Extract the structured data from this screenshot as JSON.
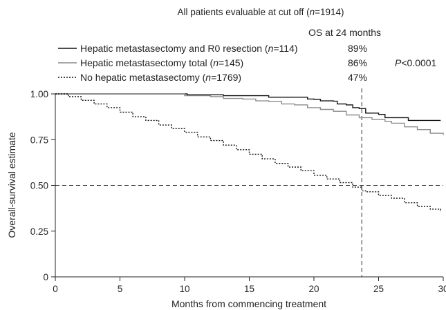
{
  "chart_data": {
    "type": "line",
    "title_parts": [
      "All patients evaluable at cut off (",
      "n",
      "=1914)"
    ],
    "os_header": "OS at 24 months",
    "xlabel": "Months from commencing treatment",
    "ylabel": "Overall-survival estimate",
    "xlim": [
      0,
      30
    ],
    "ylim": [
      0,
      1
    ],
    "x_ticks": [
      "0",
      "5",
      "10",
      "15",
      "20",
      "25",
      "30"
    ],
    "y_ticks": [
      "0",
      "0.25",
      "0.50",
      "0.75",
      "1.00"
    ],
    "p_value_parts": [
      "P",
      "<0.0001"
    ],
    "reference_lines": {
      "x": 23.7,
      "y": 0.5
    },
    "series": [
      {
        "name_parts": [
          "Hepatic metastasectomy and R0 resection (",
          "n",
          "=114)"
        ],
        "os24": "89%",
        "color": "#111111",
        "style": "solid",
        "points": [
          [
            0,
            1.0
          ],
          [
            10.0,
            1.0
          ],
          [
            10.2,
            0.995
          ],
          [
            12.5,
            0.995
          ],
          [
            13.0,
            0.99
          ],
          [
            16.0,
            0.99
          ],
          [
            16.5,
            0.982
          ],
          [
            19.0,
            0.982
          ],
          [
            19.5,
            0.972
          ],
          [
            20.0,
            0.97
          ],
          [
            20.5,
            0.962
          ],
          [
            21.5,
            0.96
          ],
          [
            21.8,
            0.945
          ],
          [
            22.5,
            0.94
          ],
          [
            23.0,
            0.925
          ],
          [
            23.5,
            0.92
          ],
          [
            24.0,
            0.895
          ],
          [
            25.0,
            0.888
          ],
          [
            25.5,
            0.87
          ],
          [
            27.0,
            0.87
          ],
          [
            27.3,
            0.855
          ],
          [
            29.8,
            0.855
          ]
        ]
      },
      {
        "name_parts": [
          "Hepatic metastasectomy total (",
          "n",
          "=145)"
        ],
        "os24": "86%",
        "color": "#8c8c8c",
        "style": "solid",
        "points": [
          [
            0,
            1.0
          ],
          [
            9.5,
            1.0
          ],
          [
            10.0,
            0.99
          ],
          [
            12.0,
            0.985
          ],
          [
            13.0,
            0.975
          ],
          [
            14.5,
            0.972
          ],
          [
            15.5,
            0.962
          ],
          [
            16.5,
            0.958
          ],
          [
            17.5,
            0.945
          ],
          [
            18.5,
            0.94
          ],
          [
            19.5,
            0.925
          ],
          [
            20.5,
            0.915
          ],
          [
            21.5,
            0.905
          ],
          [
            22.5,
            0.885
          ],
          [
            23.5,
            0.87
          ],
          [
            24.5,
            0.86
          ],
          [
            25.5,
            0.85
          ],
          [
            26.0,
            0.84
          ],
          [
            27.0,
            0.82
          ],
          [
            28.0,
            0.805
          ],
          [
            29.0,
            0.785
          ],
          [
            30.0,
            0.775
          ]
        ]
      },
      {
        "name_parts": [
          "No hepatic metastasectomy (",
          "n",
          "=1769)"
        ],
        "os24": "47%",
        "color": "#111111",
        "style": "dotted",
        "points": [
          [
            0,
            1.0
          ],
          [
            1,
            0.985
          ],
          [
            2,
            0.965
          ],
          [
            3,
            0.945
          ],
          [
            4,
            0.925
          ],
          [
            5,
            0.9
          ],
          [
            6,
            0.875
          ],
          [
            7,
            0.855
          ],
          [
            8,
            0.83
          ],
          [
            9,
            0.81
          ],
          [
            10,
            0.79
          ],
          [
            11,
            0.765
          ],
          [
            12,
            0.745
          ],
          [
            13,
            0.72
          ],
          [
            14,
            0.695
          ],
          [
            15,
            0.67
          ],
          [
            16,
            0.645
          ],
          [
            17,
            0.62
          ],
          [
            18,
            0.6
          ],
          [
            19,
            0.58
          ],
          [
            20,
            0.555
          ],
          [
            21,
            0.535
          ],
          [
            22,
            0.515
          ],
          [
            23,
            0.49
          ],
          [
            23.7,
            0.47
          ],
          [
            24,
            0.465
          ],
          [
            25,
            0.445
          ],
          [
            26,
            0.43
          ],
          [
            27,
            0.405
          ],
          [
            28,
            0.385
          ],
          [
            29,
            0.37
          ],
          [
            29.8,
            0.355
          ]
        ]
      }
    ]
  }
}
